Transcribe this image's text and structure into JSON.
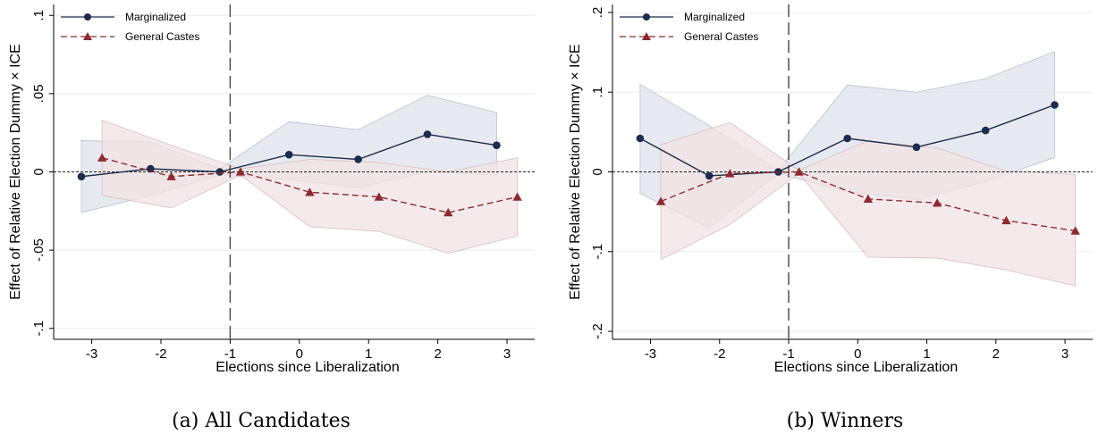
{
  "chart_data": [
    {
      "type": "line",
      "caption": "(a) All Candidates",
      "xlabel": "Elections since Liberalization",
      "ylabel": "Effect of Relative Election Dummy × ICE",
      "xticks": [
        -3,
        -2,
        -1,
        0,
        1,
        2,
        3
      ],
      "xtick_labels": [
        "-3",
        "-2",
        "-1",
        "0",
        "1",
        "2",
        "3"
      ],
      "yticks": [
        -0.1,
        -0.05,
        0,
        0.05,
        0.1
      ],
      "ytick_labels": [
        "-.1",
        "-.05",
        "0",
        ".05",
        ".1"
      ],
      "xlim": [
        -3.55,
        3.4
      ],
      "ylim": [
        -0.107,
        0.107
      ],
      "event_line_x": -1,
      "zero_line": true,
      "legend_position": "top-left",
      "series": [
        {
          "name": "Marginalized",
          "style": "solid-circle",
          "color": "#1c2c4c",
          "band_color": "#dde2ea",
          "x": [
            -3.15,
            -2.15,
            -1.15,
            -0.15,
            0.85,
            1.85,
            2.85
          ],
          "y": [
            -0.003,
            0.002,
            0.0,
            0.011,
            0.008,
            0.024,
            0.017
          ],
          "ci_low": [
            -0.026,
            -0.015,
            -0.002,
            -0.005,
            -0.01,
            0.0,
            -0.002
          ],
          "ci_high": [
            0.02,
            0.019,
            0.002,
            0.032,
            0.027,
            0.049,
            0.038
          ]
        },
        {
          "name": "General Castes",
          "style": "dashed-triangle",
          "color": "#8c2a2f",
          "band_color": "#f2e3e4",
          "x": [
            -2.85,
            -1.85,
            -0.85,
            0.15,
            1.15,
            2.15,
            3.15
          ],
          "y": [
            0.009,
            -0.003,
            0.0,
            -0.013,
            -0.016,
            -0.026,
            -0.016
          ],
          "ci_low": [
            -0.015,
            -0.023,
            -0.002,
            -0.035,
            -0.038,
            -0.052,
            -0.041
          ],
          "ci_high": [
            0.033,
            0.017,
            0.002,
            0.008,
            0.006,
            0.0,
            0.009
          ]
        }
      ]
    },
    {
      "type": "line",
      "caption": "(b) Winners",
      "xlabel": "Elections since Liberalization",
      "ylabel": "Effect of Relative Election Dummy × ICE",
      "xticks": [
        -3,
        -2,
        -1,
        0,
        1,
        2,
        3
      ],
      "xtick_labels": [
        "-3",
        "-2",
        "-1",
        "0",
        "1",
        "2",
        "3"
      ],
      "yticks": [
        -0.2,
        -0.1,
        0,
        0.1,
        0.2
      ],
      "ytick_labels": [
        "-.2",
        "-.1",
        "0",
        ".1",
        ".2"
      ],
      "xlim": [
        -3.55,
        3.4
      ],
      "ylim": [
        -0.21,
        0.21
      ],
      "event_line_x": -1,
      "zero_line": true,
      "legend_position": "top-left",
      "series": [
        {
          "name": "Marginalized",
          "style": "solid-circle",
          "color": "#1c2c4c",
          "band_color": "#dde2ea",
          "x": [
            -3.15,
            -2.15,
            -1.15,
            -0.15,
            0.85,
            1.85,
            2.85
          ],
          "y": [
            0.042,
            -0.005,
            0.0,
            0.042,
            0.031,
            0.052,
            0.084
          ],
          "ci_low": [
            -0.027,
            -0.07,
            -0.002,
            -0.025,
            -0.035,
            -0.012,
            0.018
          ],
          "ci_high": [
            0.11,
            0.058,
            0.002,
            0.109,
            0.1,
            0.117,
            0.151
          ]
        },
        {
          "name": "General Castes",
          "style": "dashed-triangle",
          "color": "#8c2a2f",
          "band_color": "#f2e3e4",
          "x": [
            -2.85,
            -1.85,
            -0.85,
            0.15,
            1.15,
            2.15,
            3.15
          ],
          "y": [
            -0.037,
            -0.002,
            0.0,
            -0.034,
            -0.039,
            -0.061,
            -0.074
          ],
          "ci_low": [
            -0.11,
            -0.066,
            -0.002,
            -0.107,
            -0.108,
            -0.123,
            -0.143
          ],
          "ci_high": [
            0.034,
            0.062,
            0.002,
            0.039,
            0.03,
            0.001,
            -0.003
          ]
        }
      ]
    }
  ]
}
